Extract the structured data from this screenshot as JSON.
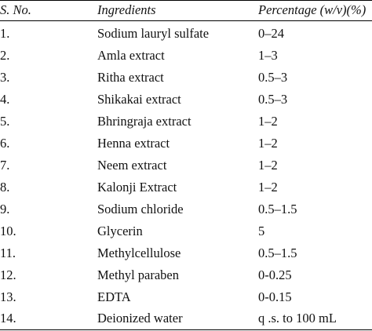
{
  "table": {
    "headers": [
      "S. No.",
      "Ingredients",
      "Percentage (w/v)(%)"
    ],
    "rows": [
      [
        "1.",
        "Sodium lauryl sulfate",
        "0–24"
      ],
      [
        "2.",
        "Amla extract",
        "1–3"
      ],
      [
        "3.",
        "Ritha extract",
        "0.5–3"
      ],
      [
        "4.",
        "Shikakai extract",
        "0.5–3"
      ],
      [
        "5.",
        "Bhringraja extract",
        "1–2"
      ],
      [
        "6.",
        "Henna extract",
        "1–2"
      ],
      [
        "7.",
        "Neem extract",
        "1–2"
      ],
      [
        "8.",
        "Kalonji Extract",
        "1–2"
      ],
      [
        "9.",
        "Sodium chloride",
        "0.5–1.5"
      ],
      [
        "10.",
        "Glycerin",
        "5"
      ],
      [
        "11.",
        "Methylcellulose",
        "0.5–1.5"
      ],
      [
        "12.",
        "Methyl paraben",
        "0-0.25"
      ],
      [
        "13.",
        "EDTA",
        "0-0.15"
      ],
      [
        "14.",
        "Deionized water",
        "q .s. to 100 mL"
      ]
    ]
  }
}
